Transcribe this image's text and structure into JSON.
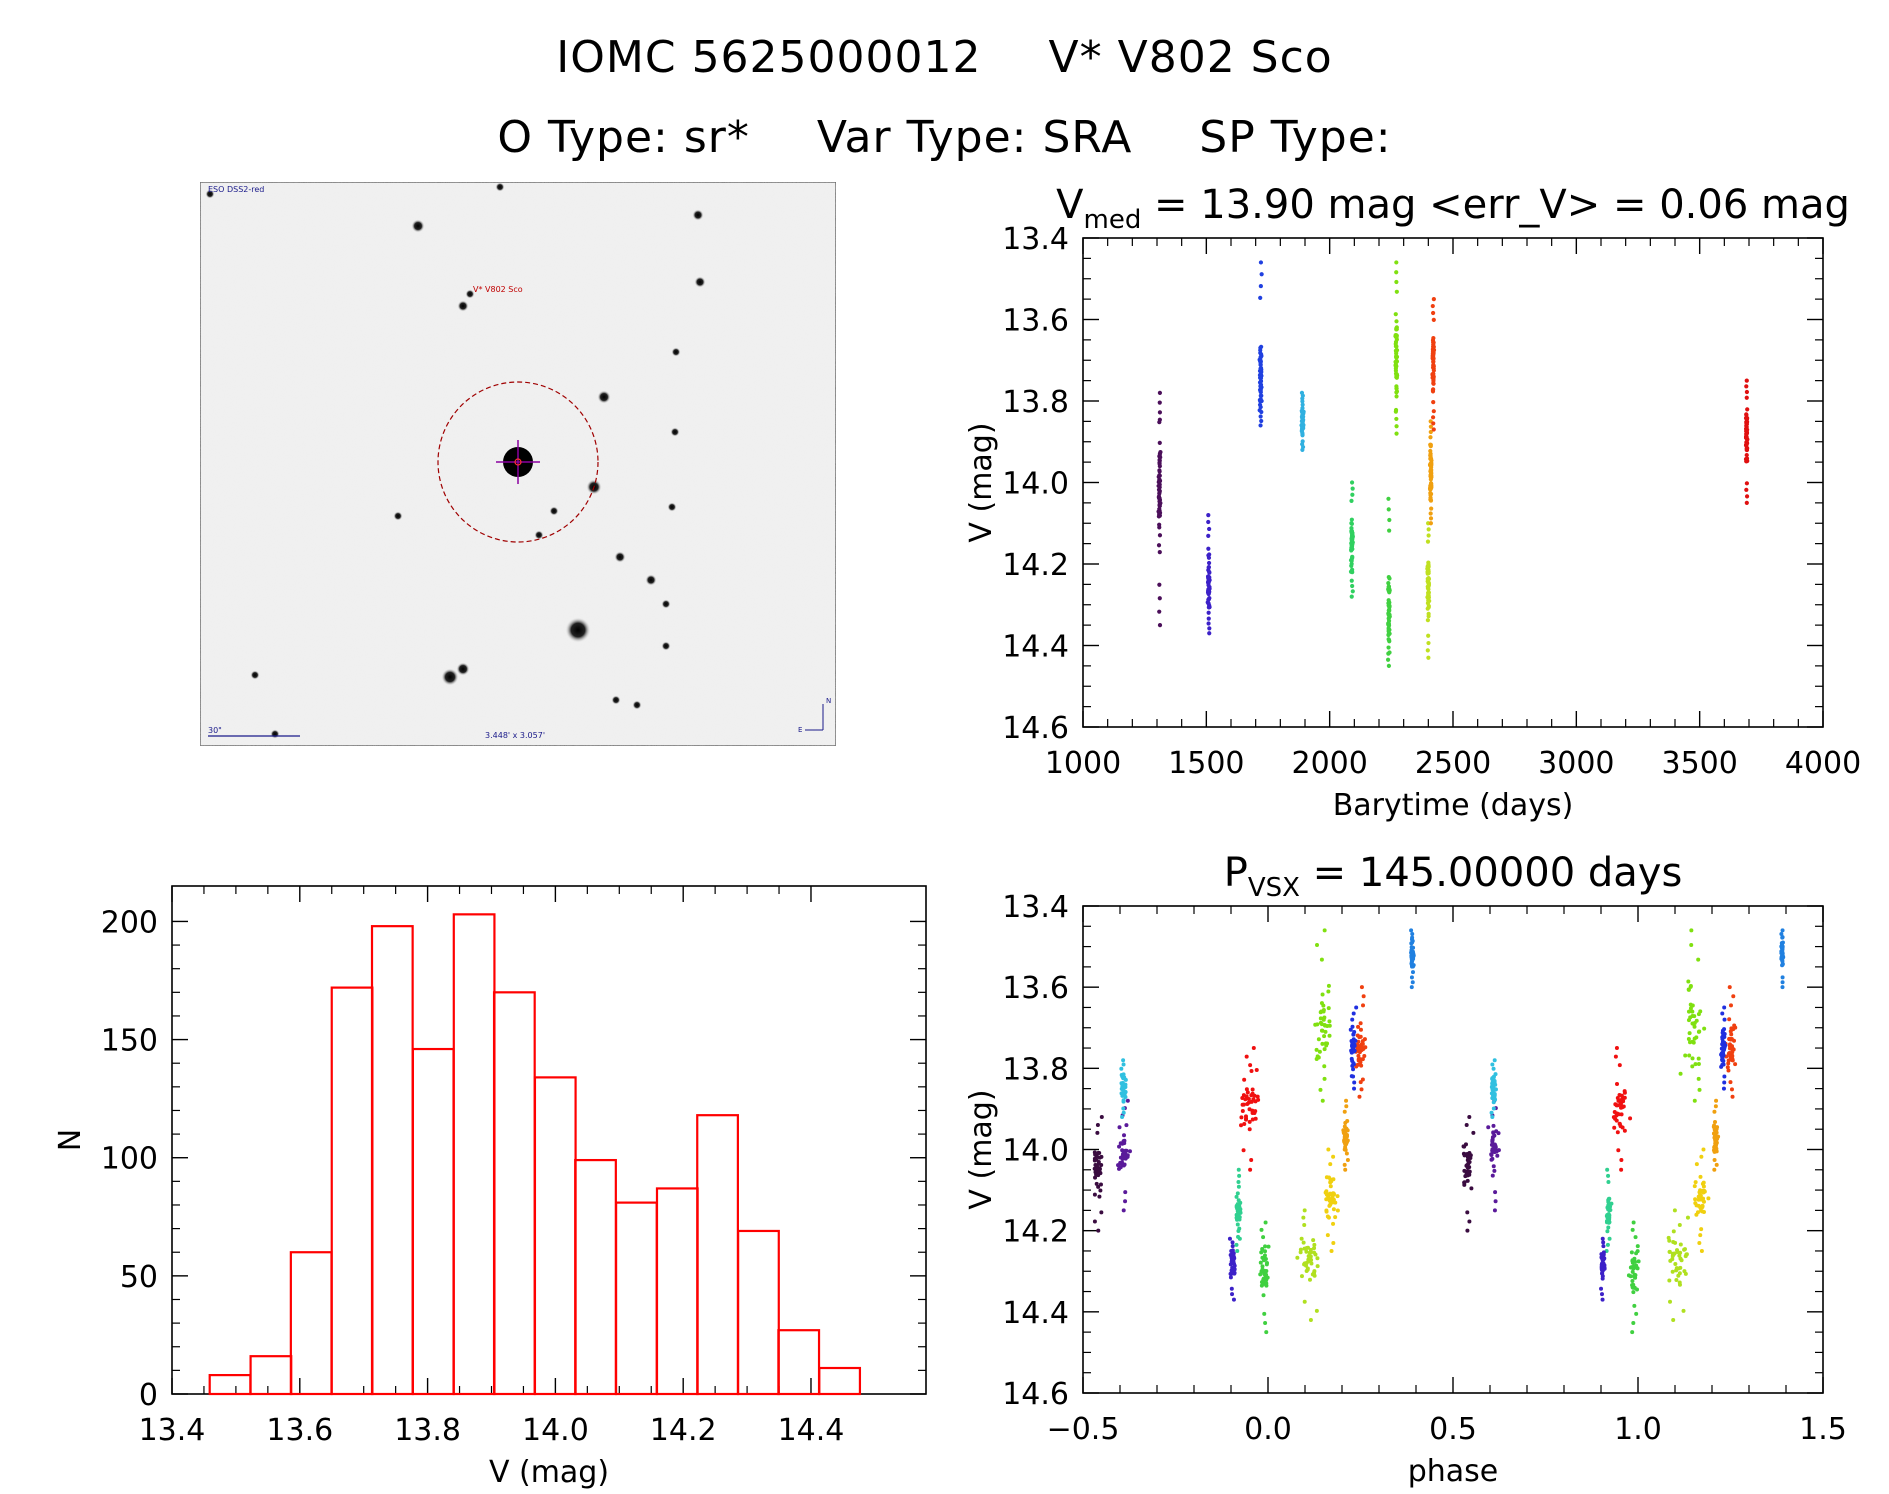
{
  "header": {
    "id_label": "IOMC 5625000012",
    "star_name": "V* V802 Sco",
    "otype": "O Type: sr*",
    "vartype": "Var Type: SRA",
    "sptype": "SP Type:"
  },
  "finder": {
    "survey_label": "ESO DSS2-red",
    "target_label": "V* V802 Sco",
    "scale_label": "30\"",
    "fov_label": "3.448' x 3.057'",
    "north_label": "N",
    "east_label": "E"
  },
  "chart_data": [
    {
      "type": "scatter",
      "title_main": "V",
      "title_sub": "med",
      "title_rest": " = 13.90 mag <err_V> = 0.06 mag",
      "xlabel": "Barytime (days)",
      "ylabel": "V (mag)",
      "xlim": [
        1000,
        4000
      ],
      "ylim": [
        14.6,
        13.4
      ],
      "xticks": [
        1000,
        1500,
        2000,
        2500,
        3000,
        3500,
        4000
      ],
      "yticks": [
        13.4,
        13.6,
        13.8,
        14.0,
        14.2,
        14.4,
        14.6
      ],
      "series": [
        {
          "name": "seg1",
          "color": "#4b0f5a",
          "x": 1310,
          "ymin": 13.78,
          "ymax": 14.35,
          "center": 14.02
        },
        {
          "name": "seg2",
          "color": "#3c21c8",
          "x": 1510,
          "ymin": 14.08,
          "ymax": 14.37,
          "center": 14.25
        },
        {
          "name": "seg3",
          "color": "#2040e0",
          "x": 1720,
          "ymin": 13.46,
          "ymax": 13.86,
          "center": 13.75
        },
        {
          "name": "seg4",
          "color": "#30b0e0",
          "x": 1890,
          "ymin": 13.78,
          "ymax": 13.92,
          "center": 13.85
        },
        {
          "name": "seg5",
          "color": "#30d060",
          "x": 2090,
          "ymin": 14.0,
          "ymax": 14.28,
          "center": 14.15
        },
        {
          "name": "seg6",
          "color": "#40d040",
          "x": 2240,
          "ymin": 14.04,
          "ymax": 14.45,
          "center": 14.3
        },
        {
          "name": "seg7",
          "color": "#80e010",
          "x": 2270,
          "ymin": 13.46,
          "ymax": 13.88,
          "center": 13.7
        },
        {
          "name": "seg8",
          "color": "#c0e020",
          "x": 2400,
          "ymin": 14.1,
          "ymax": 14.43,
          "center": 14.25
        },
        {
          "name": "seg9",
          "color": "#f0a010",
          "x": 2410,
          "ymin": 13.85,
          "ymax": 14.1,
          "center": 13.98
        },
        {
          "name": "seg10",
          "color": "#f04010",
          "x": 2420,
          "ymin": 13.55,
          "ymax": 13.87,
          "center": 13.72
        },
        {
          "name": "seg11",
          "color": "#e01010",
          "x": 3690,
          "ymin": 13.75,
          "ymax": 14.05,
          "center": 13.89
        }
      ]
    },
    {
      "type": "bar",
      "title": "",
      "xlabel": "V (mag)",
      "ylabel": "N",
      "xlim": [
        13.4,
        14.58
      ],
      "ylim": [
        0,
        215
      ],
      "xticks": [
        13.4,
        13.6,
        13.8,
        14.0,
        14.2,
        14.4
      ],
      "yticks": [
        0,
        50,
        100,
        150,
        200
      ],
      "bin_width": 0.0636,
      "bin_starts": [
        13.459,
        13.523,
        13.586,
        13.65,
        13.713,
        13.777,
        13.841,
        13.904,
        13.968,
        14.031,
        14.095,
        14.159,
        14.222,
        14.286,
        14.349,
        14.413
      ],
      "values": [
        8,
        16,
        60,
        172,
        198,
        146,
        203,
        170,
        134,
        99,
        81,
        87,
        118,
        69,
        27,
        11
      ],
      "color": "#ff0000"
    },
    {
      "type": "scatter",
      "title_main": "P",
      "title_sub": "VSX",
      "title_rest": " = 145.00000 days",
      "xlabel": "phase",
      "ylabel": "V (mag)",
      "xlim": [
        -0.5,
        1.5
      ],
      "ylim": [
        14.6,
        13.4
      ],
      "xticks": [
        -0.5,
        0.0,
        0.5,
        1.0,
        1.5
      ],
      "xtick_labels": [
        "−0.5",
        "0.0",
        "0.5",
        "1.0",
        "1.5"
      ],
      "yticks": [
        13.4,
        13.6,
        13.8,
        14.0,
        14.2,
        14.4,
        14.6
      ],
      "series": [
        {
          "name": "ph-dark",
          "color": "#3a0c40",
          "x": -0.46,
          "ymin": 13.92,
          "ymax": 14.2,
          "center": 14.05,
          "xspread": 0.02
        },
        {
          "name": "ph-purple",
          "color": "#5a1a9a",
          "x": -0.39,
          "ymin": 13.88,
          "ymax": 14.15,
          "center": 14.0,
          "xspread": 0.02
        },
        {
          "name": "ph-cyan",
          "color": "#30c0e0",
          "x": -0.39,
          "ymin": 13.78,
          "ymax": 13.92,
          "center": 13.85,
          "xspread": 0.01
        },
        {
          "name": "ph-red",
          "color": "#f01010",
          "x": -0.05,
          "ymin": 13.75,
          "ymax": 14.05,
          "center": 13.89,
          "xspread": 0.04
        },
        {
          "name": "ph-teal",
          "color": "#30d090",
          "x": -0.08,
          "ymin": 14.05,
          "ymax": 14.25,
          "center": 14.15,
          "xspread": 0.01
        },
        {
          "name": "ph-blue",
          "color": "#3c21c8",
          "x": -0.095,
          "ymin": 14.22,
          "ymax": 14.37,
          "center": 14.28,
          "xspread": 0.01
        },
        {
          "name": "ph-green",
          "color": "#40d040",
          "x": -0.01,
          "ymin": 14.18,
          "ymax": 14.45,
          "center": 14.3,
          "xspread": 0.02
        },
        {
          "name": "ph-lime",
          "color": "#b0e020",
          "x": 0.11,
          "ymin": 14.15,
          "ymax": 14.42,
          "center": 14.27,
          "xspread": 0.05
        },
        {
          "name": "ph-yellow",
          "color": "#f0d010",
          "x": 0.17,
          "ymin": 14.0,
          "ymax": 14.25,
          "center": 14.12,
          "xspread": 0.03
        },
        {
          "name": "ph-orange",
          "color": "#f0a010",
          "x": 0.21,
          "ymin": 13.88,
          "ymax": 14.05,
          "center": 13.97,
          "xspread": 0.01
        },
        {
          "name": "ph-yg",
          "color": "#80e010",
          "x": 0.15,
          "ymin": 13.46,
          "ymax": 13.88,
          "center": 13.7,
          "xspread": 0.04
        },
        {
          "name": "ph-orred",
          "color": "#f04010",
          "x": 0.25,
          "ymin": 13.6,
          "ymax": 13.87,
          "center": 13.75,
          "xspread": 0.02
        },
        {
          "name": "ph-navy",
          "color": "#2030e0",
          "x": 0.23,
          "ymin": 13.65,
          "ymax": 13.85,
          "center": 13.75,
          "xspread": 0.01
        },
        {
          "name": "ph-sky",
          "color": "#2080e0",
          "x": 0.39,
          "ymin": 13.46,
          "ymax": 13.6,
          "center": 13.52,
          "xspread": 0.005
        }
      ]
    }
  ]
}
